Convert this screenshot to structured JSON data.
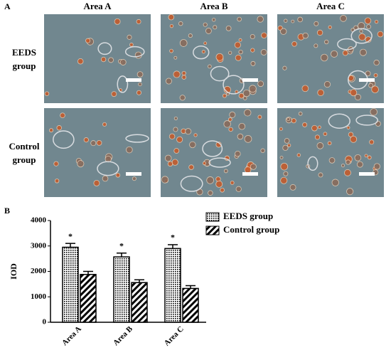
{
  "panel_a": {
    "label": "A",
    "columns": [
      "Area A",
      "Area B",
      "Area C"
    ],
    "rows": [
      [
        "EEDS",
        "group"
      ],
      [
        "Control",
        "group"
      ]
    ]
  },
  "chart_data": {
    "type": "bar",
    "label": "B",
    "ylabel": "IOD",
    "categories": [
      "Area A",
      "Area B",
      "Area C"
    ],
    "series": [
      {
        "name": "EEDS group",
        "color": "#000000",
        "pattern": "dots",
        "values": [
          2950,
          2570,
          2900
        ],
        "errors": [
          150,
          150,
          150
        ],
        "significance": [
          "*",
          "*",
          "*"
        ]
      },
      {
        "name": "Control group",
        "color": "#000000",
        "pattern": "diagonal",
        "values": [
          1880,
          1560,
          1330
        ],
        "errors": [
          120,
          110,
          110
        ]
      }
    ],
    "ylim": [
      0,
      4000
    ],
    "yticks": [
      0,
      1000,
      2000,
      3000,
      4000
    ]
  }
}
